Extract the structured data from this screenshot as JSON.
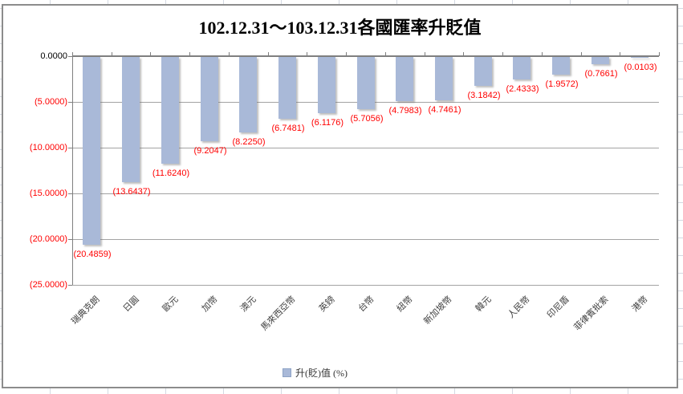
{
  "chart_data": {
    "type": "bar",
    "title": "102.12.31～103.12.31各國匯率升貶值",
    "legend": "升(貶)值 (%)",
    "legend_position": "bottom",
    "grid": true,
    "xlabel": "",
    "ylabel": "",
    "ylim": [
      -25,
      0
    ],
    "y_tick_labels": [
      "0.0000",
      "(5.0000)",
      "(10.0000)",
      "(15.0000)",
      "(20.0000)",
      "(25.0000)"
    ],
    "categories": [
      "瑞典克朗",
      "日圓",
      "歐元",
      "加幣",
      "澳元",
      "馬來西亞幣",
      "英鎊",
      "台幣",
      "紐幣",
      "新加坡幣",
      "韓元",
      "人民幣",
      "印尼盾",
      "菲律賓批索",
      "港幣"
    ],
    "series": [
      {
        "name": "升(貶)值 (%)",
        "values": [
          -20.4859,
          -13.6437,
          -11.624,
          -9.2047,
          -8.225,
          -6.7481,
          -6.1176,
          -5.7056,
          -4.7983,
          -4.7461,
          -3.1842,
          -2.4333,
          -1.9572,
          -0.7661,
          -0.0103
        ]
      }
    ],
    "value_labels": [
      "(20.4859)",
      "(13.6437)",
      "(11.6240)",
      "(9.2047)",
      "(8.2250)",
      "(6.7481)",
      "(6.1176)",
      "(5.7056)",
      "(4.7983)",
      "(4.7461)",
      "(3.1842)",
      "(2.4333)",
      "(1.9572)",
      "(0.7661)",
      "(0.0103)"
    ],
    "colors": {
      "bar": "#a9b9d8",
      "negative_label": "#ff0000",
      "zero_label": "#000000",
      "gridline": "#a3a3a3",
      "axis": "#7f7f7f",
      "legend_swatch_border": "#8ea3c6"
    }
  }
}
